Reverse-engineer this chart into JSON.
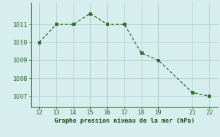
{
  "x": [
    12,
    13,
    14,
    15,
    16,
    17,
    18,
    19,
    21,
    22
  ],
  "y": [
    1010.0,
    1011.0,
    1011.0,
    1011.6,
    1011.0,
    1011.0,
    1009.4,
    1009.0,
    1007.2,
    1007.0
  ],
  "xlim": [
    11.5,
    22.5
  ],
  "ylim": [
    1006.4,
    1012.2
  ],
  "xticks": [
    12,
    13,
    14,
    15,
    16,
    17,
    18,
    19,
    21,
    22
  ],
  "yticks": [
    1007,
    1008,
    1009,
    1010,
    1011
  ],
  "line_color": "#2d6a2d",
  "marker_color": "#2d6a2d",
  "bg_color": "#d6eeee",
  "grid_color": "#afd4cc",
  "xlabel": "Graphe pression niveau de la mer (hPa)",
  "xlabel_color": "#1a4d1a",
  "tick_color": "#2d6a2d",
  "line_width": 1.0,
  "marker_size": 2.5,
  "tick_fontsize": 6.5,
  "xlabel_fontsize": 6.5
}
